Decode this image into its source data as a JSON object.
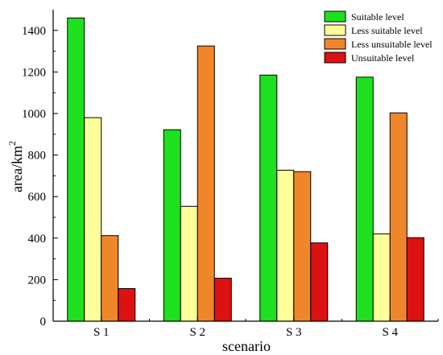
{
  "chart_data": {
    "type": "bar",
    "xlabel": "scenario",
    "ylabel_base": "area/km",
    "ylabel_sup": "2",
    "categories": [
      "S 1",
      "S 2",
      "S 3",
      "S 4"
    ],
    "ylim": [
      0,
      1500
    ],
    "yticks": [
      0,
      200,
      400,
      600,
      800,
      1000,
      1200,
      1400
    ],
    "grid": false,
    "legend_position": "top-right",
    "series": [
      {
        "name": "Suitable level",
        "color": "#1ee01e",
        "values": [
          1460,
          922,
          1185,
          1175
        ]
      },
      {
        "name": "Less suitable level",
        "color": "#ffff99",
        "values": [
          980,
          553,
          727,
          420
        ]
      },
      {
        "name": "Less unsuitable level",
        "color": "#f0862a",
        "values": [
          412,
          1325,
          720,
          1003
        ]
      },
      {
        "name": "Unsuitable level",
        "color": "#dd1111",
        "values": [
          157,
          207,
          377,
          402
        ]
      }
    ]
  }
}
